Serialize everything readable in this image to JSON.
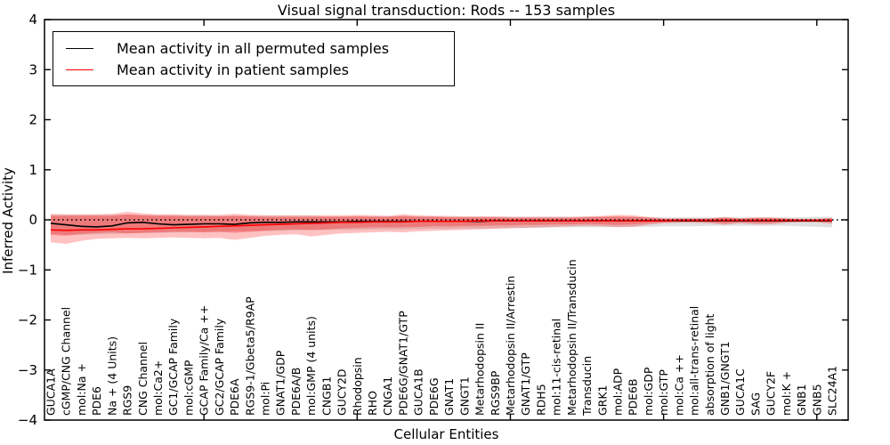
{
  "title": "Visual signal transduction: Rods -- 153 samples",
  "axes": {
    "ylabel": "Inferred Activity",
    "xlabel": "Cellular Entities",
    "ytick_labels": [
      "4",
      "3",
      "2",
      "1",
      "0",
      "−1",
      "−2",
      "−3",
      "−4"
    ]
  },
  "legend": {
    "entries": [
      {
        "label": "Mean activity in all permuted samples",
        "color": "#000000"
      },
      {
        "label": "Mean activity in patient samples",
        "color": "#ff0000"
      }
    ]
  },
  "colors": {
    "permuted_line": "#000000",
    "patient_line": "#ff0000",
    "permuted_band": "#999999",
    "patient_band": "#ff0000",
    "zero_line": "#000000"
  },
  "chart_data": {
    "type": "line",
    "title": "Visual signal transduction: Rods -- 153 samples",
    "xlabel": "Cellular Entities",
    "ylabel": "Inferred Activity",
    "ylim": [
      -4,
      4
    ],
    "yticks": [
      4,
      3,
      2,
      1,
      0,
      -1,
      -2,
      -3,
      -4
    ],
    "x_major_tick_indices": [
      10,
      20,
      30,
      40,
      50
    ],
    "zero_reference_line": true,
    "legend_position": "upper left",
    "categories": [
      "GUCA1A",
      "cGMP/CNG Channel",
      "mol:Na +",
      "PDE6",
      "Na + (4 Units)",
      "RGS9",
      "CNG Channel",
      "mol:Ca2+",
      "GC1/GCAP Family",
      "mol:cGMP",
      "GCAP Family/Ca ++",
      "GC2/GCAP Family",
      "PDE6A",
      "RGS9-1/Gbeta5/R9AP",
      "mol:Pi",
      "GNAT1/GDP",
      "PDE6A/B",
      "mol:GMP (4 units)",
      "CNGB1",
      "GUCY2D",
      "Rhodopsin",
      "RHO",
      "CNGA1",
      "PDE6G/GNAT1/GTP",
      "GUCA1B",
      "PDE6G",
      "GNAT1",
      "GNGT1",
      "Metarhodopsin II",
      "RGS9BP",
      "Metarhodopsin II/Arrestin",
      "GNAT1/GTP",
      "RDH5",
      "mol:11-cis-retinal",
      "Metarhodopsin II/Transducin",
      "Transducin",
      "GRK1",
      "mol:ADP",
      "PDE6B",
      "mol:GDP",
      "mol:GTP",
      "mol:Ca ++",
      "mol:all-trans-retinal",
      "absorption of light",
      "GNB1/GNGT1",
      "GUCA1C",
      "SAG",
      "GUCY2F",
      "mol:K +",
      "GNB1",
      "GNB5",
      "SLC24A1"
    ],
    "series": [
      {
        "name": "Mean activity in all permuted samples",
        "color": "#000000",
        "values": [
          -0.07,
          -0.1,
          -0.13,
          -0.14,
          -0.12,
          -0.06,
          -0.05,
          -0.08,
          -0.1,
          -0.09,
          -0.08,
          -0.08,
          -0.09,
          -0.06,
          -0.05,
          -0.05,
          -0.04,
          -0.04,
          -0.04,
          -0.04,
          -0.03,
          -0.03,
          -0.03,
          -0.03,
          -0.03,
          -0.03,
          -0.03,
          -0.03,
          -0.03,
          -0.02,
          -0.02,
          -0.02,
          -0.02,
          -0.02,
          -0.02,
          -0.02,
          -0.02,
          -0.02,
          -0.02,
          -0.02,
          -0.02,
          -0.02,
          -0.02,
          -0.02,
          -0.02,
          -0.02,
          -0.02,
          -0.02,
          -0.02,
          -0.02,
          -0.02,
          -0.02
        ]
      },
      {
        "name": "Mean activity in patient samples",
        "color": "#ff0000",
        "values": [
          -0.2,
          -0.21,
          -0.2,
          -0.2,
          -0.19,
          -0.18,
          -0.18,
          -0.17,
          -0.16,
          -0.15,
          -0.14,
          -0.13,
          -0.12,
          -0.11,
          -0.1,
          -0.09,
          -0.08,
          -0.07,
          -0.06,
          -0.05,
          -0.05,
          -0.04,
          -0.04,
          -0.04,
          -0.03,
          -0.03,
          -0.03,
          -0.03,
          -0.02,
          -0.02,
          -0.02,
          -0.02,
          -0.02,
          -0.02,
          -0.02,
          -0.02,
          -0.02,
          -0.02,
          -0.02,
          -0.02,
          -0.02,
          -0.01,
          -0.01,
          -0.01,
          -0.01,
          -0.01,
          -0.01,
          -0.01,
          -0.01,
          -0.01,
          -0.01,
          -0.01
        ]
      }
    ],
    "bands": [
      {
        "name": "permuted-samples-range",
        "color": "#999999",
        "opacity": 0.3,
        "upper": [
          0.1,
          0.1,
          0.1,
          0.1,
          0.1,
          0.1,
          0.09,
          0.09,
          0.09,
          0.09,
          0.09,
          0.08,
          0.08,
          0.08,
          0.08,
          0.08,
          0.08,
          0.08,
          0.07,
          0.07,
          0.07,
          0.07,
          0.07,
          0.07,
          0.07,
          0.07,
          0.06,
          0.06,
          0.06,
          0.06,
          0.06,
          0.06,
          0.06,
          0.06,
          0.06,
          0.06,
          0.06,
          0.06,
          0.06,
          0.05,
          0.05,
          0.05,
          0.05,
          0.05,
          0.05,
          0.05,
          0.05,
          0.05,
          0.05,
          0.05,
          0.06,
          0.06
        ],
        "lower": [
          -0.28,
          -0.3,
          -0.3,
          -0.29,
          -0.28,
          -0.27,
          -0.26,
          -0.26,
          -0.25,
          -0.25,
          -0.24,
          -0.24,
          -0.23,
          -0.23,
          -0.22,
          -0.22,
          -0.21,
          -0.21,
          -0.2,
          -0.2,
          -0.2,
          -0.19,
          -0.19,
          -0.19,
          -0.18,
          -0.18,
          -0.18,
          -0.17,
          -0.17,
          -0.17,
          -0.16,
          -0.16,
          -0.16,
          -0.15,
          -0.15,
          -0.15,
          -0.15,
          -0.14,
          -0.14,
          -0.14,
          -0.13,
          -0.13,
          -0.13,
          -0.12,
          -0.12,
          -0.12,
          -0.12,
          -0.12,
          -0.12,
          -0.13,
          -0.14,
          -0.15
        ]
      },
      {
        "name": "patient-samples-range-outer",
        "color": "#ff0000",
        "opacity": 0.24,
        "upper": [
          0.12,
          0.11,
          0.11,
          0.11,
          0.12,
          0.16,
          0.13,
          0.11,
          0.11,
          0.1,
          0.1,
          0.1,
          0.12,
          0.1,
          0.09,
          0.09,
          0.09,
          0.09,
          0.09,
          0.09,
          0.1,
          0.09,
          0.08,
          0.11,
          0.09,
          0.08,
          0.08,
          0.07,
          0.07,
          0.07,
          0.06,
          0.06,
          0.06,
          0.06,
          0.06,
          0.07,
          0.08,
          0.1,
          0.09,
          0.06,
          0.03,
          0.03,
          0.03,
          0.03,
          0.06,
          0.03,
          0.05,
          0.05,
          0.03,
          0.02,
          0.02,
          0.04
        ],
        "lower": [
          -0.45,
          -0.48,
          -0.42,
          -0.38,
          -0.37,
          -0.36,
          -0.37,
          -0.36,
          -0.35,
          -0.36,
          -0.37,
          -0.36,
          -0.4,
          -0.36,
          -0.32,
          -0.3,
          -0.29,
          -0.33,
          -0.3,
          -0.27,
          -0.26,
          -0.25,
          -0.24,
          -0.25,
          -0.23,
          -0.22,
          -0.21,
          -0.2,
          -0.19,
          -0.18,
          -0.17,
          -0.16,
          -0.15,
          -0.14,
          -0.13,
          -0.12,
          -0.13,
          -0.15,
          -0.14,
          -0.1,
          -0.07,
          -0.06,
          -0.06,
          -0.07,
          -0.1,
          -0.07,
          -0.09,
          -0.09,
          -0.06,
          -0.05,
          -0.05,
          -0.08
        ]
      },
      {
        "name": "patient-samples-range-inner",
        "color": "#ff0000",
        "opacity": 0.28,
        "upper": [
          0.08,
          0.08,
          0.08,
          0.08,
          0.08,
          0.11,
          0.09,
          0.08,
          0.08,
          0.07,
          0.07,
          0.07,
          0.08,
          0.07,
          0.06,
          0.06,
          0.06,
          0.06,
          0.06,
          0.06,
          0.07,
          0.06,
          0.06,
          0.08,
          0.06,
          0.06,
          0.05,
          0.05,
          0.05,
          0.05,
          0.04,
          0.04,
          0.04,
          0.04,
          0.04,
          0.05,
          0.06,
          0.07,
          0.06,
          0.04,
          0.02,
          0.02,
          0.02,
          0.02,
          0.04,
          0.02,
          0.03,
          0.03,
          0.02,
          0.01,
          0.01,
          0.03
        ],
        "lower": [
          -0.3,
          -0.32,
          -0.28,
          -0.26,
          -0.25,
          -0.27,
          -0.26,
          -0.25,
          -0.24,
          -0.24,
          -0.25,
          -0.24,
          -0.26,
          -0.24,
          -0.22,
          -0.2,
          -0.19,
          -0.2,
          -0.19,
          -0.17,
          -0.16,
          -0.15,
          -0.15,
          -0.15,
          -0.14,
          -0.13,
          -0.13,
          -0.12,
          -0.12,
          -0.11,
          -0.11,
          -0.1,
          -0.1,
          -0.09,
          -0.09,
          -0.08,
          -0.09,
          -0.1,
          -0.09,
          -0.07,
          -0.05,
          -0.04,
          -0.04,
          -0.05,
          -0.07,
          -0.05,
          -0.06,
          -0.06,
          -0.04,
          -0.04,
          -0.04,
          -0.05
        ]
      }
    ]
  }
}
